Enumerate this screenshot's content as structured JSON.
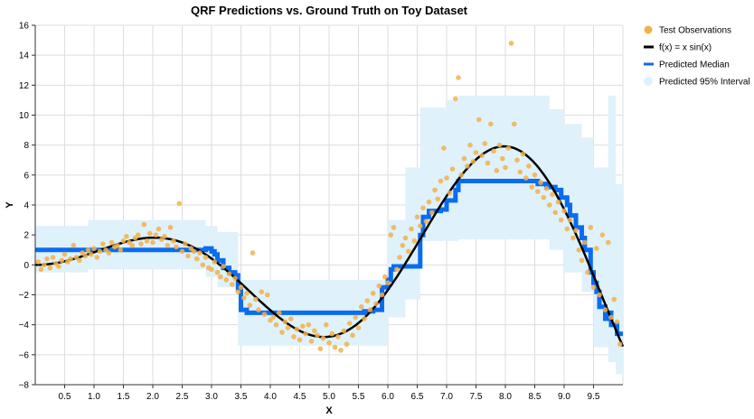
{
  "chart_data": {
    "type": "line",
    "title": "QRF Predictions vs. Ground Truth on Toy Dataset",
    "xlabel": "X",
    "ylabel": "Y",
    "xlim": [
      0,
      10
    ],
    "ylim": [
      -8,
      16
    ],
    "x_ticks": [
      0.5,
      1.0,
      1.5,
      2.0,
      2.5,
      3.0,
      3.5,
      4.0,
      4.5,
      5.0,
      5.5,
      6.0,
      6.5,
      7.0,
      7.5,
      8.0,
      8.5,
      9.0,
      9.5
    ],
    "x_tick_labels": [
      "0.5",
      "1.0",
      "1.5",
      "2.0",
      "2.5",
      "3.0",
      "3.5",
      "4.0",
      "4.5",
      "5.0",
      "5.5",
      "6.0",
      "6.5",
      "7.0",
      "7.5",
      "8.0",
      "8.5",
      "9.0",
      "9.5"
    ],
    "y_ticks": [
      -8,
      -6,
      -4,
      -2,
      0,
      2,
      4,
      6,
      8,
      10,
      12,
      14,
      16
    ],
    "y_tick_labels": [
      "−8",
      "−6",
      "−4",
      "−2",
      "0",
      "2",
      "4",
      "6",
      "8",
      "10",
      "12",
      "14",
      "16"
    ],
    "grid": true,
    "legend_position": "right",
    "legend": [
      {
        "label": "Test Observations",
        "kind": "point",
        "color": "#f2b24b"
      },
      {
        "label": "f(x) = x sin(x)",
        "kind": "line",
        "color": "#000000"
      },
      {
        "label": "Predicted Median",
        "kind": "line",
        "color": "#0a6cf0"
      },
      {
        "label": "Predicted 95% Interval",
        "kind": "area",
        "color": "#dff1fb"
      }
    ],
    "series": [
      {
        "name": "Predicted 95% Interval",
        "kind": "band",
        "x": [
          0.0,
          0.9,
          0.9,
          2.9,
          2.9,
          3.1,
          3.1,
          3.45,
          3.45,
          6.0,
          6.0,
          6.3,
          6.3,
          6.55,
          6.55,
          7.0,
          7.0,
          7.2,
          7.2,
          8.75,
          8.75,
          9.0,
          9.0,
          9.3,
          9.3,
          9.5,
          9.5,
          9.75,
          9.75,
          9.88,
          9.88,
          10.0
        ],
        "lower": [
          -0.5,
          -0.5,
          -0.3,
          -0.3,
          -0.8,
          -0.8,
          -1.5,
          -1.5,
          -5.4,
          -5.4,
          -3.5,
          -3.5,
          -2.3,
          -2.3,
          1.6,
          1.6,
          1.6,
          1.6,
          1.7,
          1.7,
          1.0,
          1.0,
          -0.5,
          -0.5,
          -1.8,
          -1.8,
          -5.5,
          -5.5,
          -6.5,
          -6.5,
          -7.3,
          -7.3
        ],
        "upper": [
          2.6,
          2.6,
          3.0,
          3.0,
          2.6,
          2.6,
          2.2,
          2.2,
          -1.0,
          -1.0,
          3.0,
          3.0,
          6.5,
          6.5,
          10.5,
          10.5,
          11.0,
          11.0,
          11.3,
          11.3,
          10.4,
          10.4,
          9.4,
          9.4,
          8.5,
          8.5,
          6.5,
          6.5,
          11.3,
          11.3,
          5.4,
          5.4
        ],
        "color": "#dff1fb"
      },
      {
        "name": "Predicted Median",
        "kind": "step",
        "x": [
          0.0,
          2.9,
          3.0,
          3.05,
          3.1,
          3.2,
          3.3,
          3.4,
          3.45,
          3.5,
          3.6,
          3.7,
          3.8,
          3.9,
          5.5,
          5.6,
          5.75,
          5.9,
          6.0,
          6.05,
          6.1,
          6.5,
          6.55,
          6.6,
          6.7,
          6.9,
          7.0,
          7.15,
          7.2,
          8.45,
          8.55,
          8.7,
          8.85,
          8.95,
          9.05,
          9.1,
          9.2,
          9.3,
          9.35,
          9.45,
          9.5,
          9.55,
          9.6,
          9.7,
          9.75,
          9.8,
          9.9,
          10.0
        ],
        "y": [
          1.0,
          1.1,
          0.9,
          0.7,
          0.3,
          -0.2,
          -0.5,
          -0.7,
          -1.6,
          -3.0,
          -3.2,
          -3.2,
          -3.2,
          -3.2,
          -3.2,
          -3.1,
          -3.0,
          -1.5,
          -1.0,
          -0.3,
          -0.1,
          -0.1,
          2.0,
          3.2,
          3.6,
          3.7,
          4.3,
          5.0,
          5.6,
          5.6,
          5.4,
          5.2,
          5.0,
          4.5,
          4.0,
          3.3,
          2.5,
          1.8,
          1.0,
          -0.5,
          -1.2,
          -1.8,
          -2.8,
          -3.6,
          -3.2,
          -4.0,
          -4.6,
          -4.6
        ],
        "color": "#0a6cf0"
      },
      {
        "name": "f(x) = x sin(x)",
        "kind": "function",
        "expression": "x sin(x)",
        "x_range": [
          0,
          10
        ],
        "color": "#000000"
      },
      {
        "name": "Test Observations",
        "kind": "scatter",
        "color": "#f2b24b",
        "points": [
          [
            0.05,
            0.2
          ],
          [
            0.1,
            -0.3
          ],
          [
            0.15,
            0.0
          ],
          [
            0.2,
            0.4
          ],
          [
            0.25,
            -0.2
          ],
          [
            0.3,
            0.5
          ],
          [
            0.35,
            0.1
          ],
          [
            0.4,
            -0.1
          ],
          [
            0.45,
            0.3
          ],
          [
            0.5,
            0.7
          ],
          [
            0.55,
            0.2
          ],
          [
            0.6,
            0.4
          ],
          [
            0.65,
            1.3
          ],
          [
            0.7,
            0.5
          ],
          [
            0.75,
            0.3
          ],
          [
            0.8,
            0.8
          ],
          [
            0.85,
            0.6
          ],
          [
            0.9,
            1.0
          ],
          [
            0.95,
            0.7
          ],
          [
            1.0,
            1.1
          ],
          [
            1.05,
            0.5
          ],
          [
            1.1,
            0.9
          ],
          [
            1.15,
            1.4
          ],
          [
            1.2,
            1.0
          ],
          [
            1.25,
            0.8
          ],
          [
            1.3,
            1.5
          ],
          [
            1.35,
            1.2
          ],
          [
            1.4,
            1.3
          ],
          [
            1.45,
            1.0
          ],
          [
            1.5,
            1.6
          ],
          [
            1.55,
            1.9
          ],
          [
            1.6,
            1.5
          ],
          [
            1.65,
            1.3
          ],
          [
            1.7,
            1.8
          ],
          [
            1.75,
            2.0
          ],
          [
            1.8,
            1.4
          ],
          [
            1.85,
            2.7
          ],
          [
            1.9,
            1.6
          ],
          [
            1.95,
            2.1
          ],
          [
            2.0,
            1.5
          ],
          [
            2.05,
            2.0
          ],
          [
            2.1,
            2.4
          ],
          [
            2.15,
            1.7
          ],
          [
            2.2,
            1.9
          ],
          [
            2.25,
            1.3
          ],
          [
            2.3,
            2.5
          ],
          [
            2.35,
            1.6
          ],
          [
            2.4,
            1.2
          ],
          [
            2.45,
            4.1
          ],
          [
            2.5,
            0.9
          ],
          [
            2.55,
            1.4
          ],
          [
            2.6,
            0.6
          ],
          [
            2.65,
            1.1
          ],
          [
            2.7,
            0.9
          ],
          [
            2.75,
            0.4
          ],
          [
            2.8,
            0.8
          ],
          [
            2.85,
            0.0
          ],
          [
            2.9,
            0.5
          ],
          [
            2.95,
            -0.2
          ],
          [
            3.0,
            -0.3
          ],
          [
            3.05,
            0.2
          ],
          [
            3.1,
            -0.5
          ],
          [
            3.15,
            -0.8
          ],
          [
            3.2,
            -0.1
          ],
          [
            3.25,
            -1.0
          ],
          [
            3.3,
            -0.6
          ],
          [
            3.35,
            -1.3
          ],
          [
            3.4,
            -0.9
          ],
          [
            3.45,
            -1.8
          ],
          [
            3.5,
            -1.5
          ],
          [
            3.55,
            -2.2
          ],
          [
            3.6,
            -1.9
          ],
          [
            3.65,
            -2.7
          ],
          [
            3.7,
            0.8
          ],
          [
            3.75,
            -2.3
          ],
          [
            3.8,
            -3.0
          ],
          [
            3.85,
            -1.8
          ],
          [
            3.9,
            -3.3
          ],
          [
            3.95,
            -2.0
          ],
          [
            4.0,
            -3.7
          ],
          [
            4.05,
            -3.5
          ],
          [
            4.1,
            -4.0
          ],
          [
            4.15,
            -3.2
          ],
          [
            4.2,
            -4.5
          ],
          [
            4.25,
            -3.8
          ],
          [
            4.3,
            -4.2
          ],
          [
            4.35,
            -3.6
          ],
          [
            4.4,
            -4.8
          ],
          [
            4.45,
            -4.3
          ],
          [
            4.5,
            -5.0
          ],
          [
            4.55,
            -4.1
          ],
          [
            4.6,
            -4.6
          ],
          [
            4.65,
            -4.0
          ],
          [
            4.7,
            -5.1
          ],
          [
            4.75,
            -4.4
          ],
          [
            4.8,
            -4.7
          ],
          [
            4.85,
            -5.6
          ],
          [
            4.9,
            -4.9
          ],
          [
            4.95,
            -4.0
          ],
          [
            5.0,
            -5.2
          ],
          [
            5.05,
            -4.6
          ],
          [
            5.1,
            -5.5
          ],
          [
            5.15,
            -4.8
          ],
          [
            5.2,
            -5.7
          ],
          [
            5.25,
            -4.4
          ],
          [
            5.3,
            -5.3
          ],
          [
            5.35,
            -3.9
          ],
          [
            5.4,
            -4.7
          ],
          [
            5.45,
            -3.5
          ],
          [
            5.5,
            -4.2
          ],
          [
            5.55,
            -2.8
          ],
          [
            5.6,
            -3.6
          ],
          [
            5.65,
            -2.4
          ],
          [
            5.7,
            -3.0
          ],
          [
            5.75,
            -1.9
          ],
          [
            5.8,
            -2.6
          ],
          [
            5.85,
            -1.4
          ],
          [
            5.9,
            -2.0
          ],
          [
            5.95,
            -0.8
          ],
          [
            6.0,
            -1.2
          ],
          [
            6.05,
            2.0
          ],
          [
            6.1,
            2.5
          ],
          [
            6.15,
            -0.3
          ],
          [
            6.2,
            0.5
          ],
          [
            6.25,
            1.3
          ],
          [
            6.3,
            1.8
          ],
          [
            6.35,
            0.9
          ],
          [
            6.4,
            2.4
          ],
          [
            6.45,
            1.6
          ],
          [
            6.5,
            3.2
          ],
          [
            6.55,
            2.6
          ],
          [
            6.6,
            3.8
          ],
          [
            6.65,
            2.9
          ],
          [
            6.7,
            4.2
          ],
          [
            6.75,
            3.5
          ],
          [
            6.8,
            5.0
          ],
          [
            6.85,
            4.4
          ],
          [
            6.9,
            5.6
          ],
          [
            6.95,
            7.8
          ],
          [
            7.0,
            5.8
          ],
          [
            7.05,
            4.8
          ],
          [
            7.1,
            6.4
          ],
          [
            7.15,
            11.1
          ],
          [
            7.2,
            12.5
          ],
          [
            7.25,
            6.0
          ],
          [
            7.3,
            7.1
          ],
          [
            7.35,
            6.6
          ],
          [
            7.4,
            8.0
          ],
          [
            7.45,
            6.9
          ],
          [
            7.5,
            7.5
          ],
          [
            7.55,
            9.7
          ],
          [
            7.6,
            7.3
          ],
          [
            7.65,
            8.1
          ],
          [
            7.7,
            6.8
          ],
          [
            7.75,
            9.4
          ],
          [
            7.8,
            7.6
          ],
          [
            7.85,
            6.3
          ],
          [
            7.9,
            8.0
          ],
          [
            7.95,
            7.1
          ],
          [
            8.0,
            6.5
          ],
          [
            8.05,
            7.8
          ],
          [
            8.1,
            14.8
          ],
          [
            8.15,
            9.4
          ],
          [
            8.2,
            7.0
          ],
          [
            8.25,
            6.2
          ],
          [
            8.3,
            7.4
          ],
          [
            8.35,
            5.8
          ],
          [
            8.4,
            6.6
          ],
          [
            8.45,
            5.2
          ],
          [
            8.5,
            6.0
          ],
          [
            8.55,
            4.9
          ],
          [
            8.6,
            5.5
          ],
          [
            8.65,
            4.5
          ],
          [
            8.7,
            5.1
          ],
          [
            8.75,
            4.0
          ],
          [
            8.8,
            4.7
          ],
          [
            8.85,
            3.5
          ],
          [
            8.9,
            4.2
          ],
          [
            8.95,
            3.0
          ],
          [
            9.0,
            3.6
          ],
          [
            9.05,
            2.4
          ],
          [
            9.1,
            3.0
          ],
          [
            9.15,
            1.8
          ],
          [
            9.2,
            2.3
          ],
          [
            9.25,
            1.0
          ],
          [
            9.3,
            0.3
          ],
          [
            9.35,
            1.5
          ],
          [
            9.4,
            -0.5
          ],
          [
            9.45,
            2.5
          ],
          [
            9.5,
            -1.5
          ],
          [
            9.55,
            1.1
          ],
          [
            9.6,
            -2.0
          ],
          [
            9.65,
            2.0
          ],
          [
            9.7,
            -3.0
          ],
          [
            9.75,
            1.5
          ],
          [
            9.8,
            -3.5
          ],
          [
            9.85,
            -2.3
          ],
          [
            9.9,
            -3.8
          ],
          [
            9.95,
            -5.3
          ]
        ]
      }
    ]
  }
}
